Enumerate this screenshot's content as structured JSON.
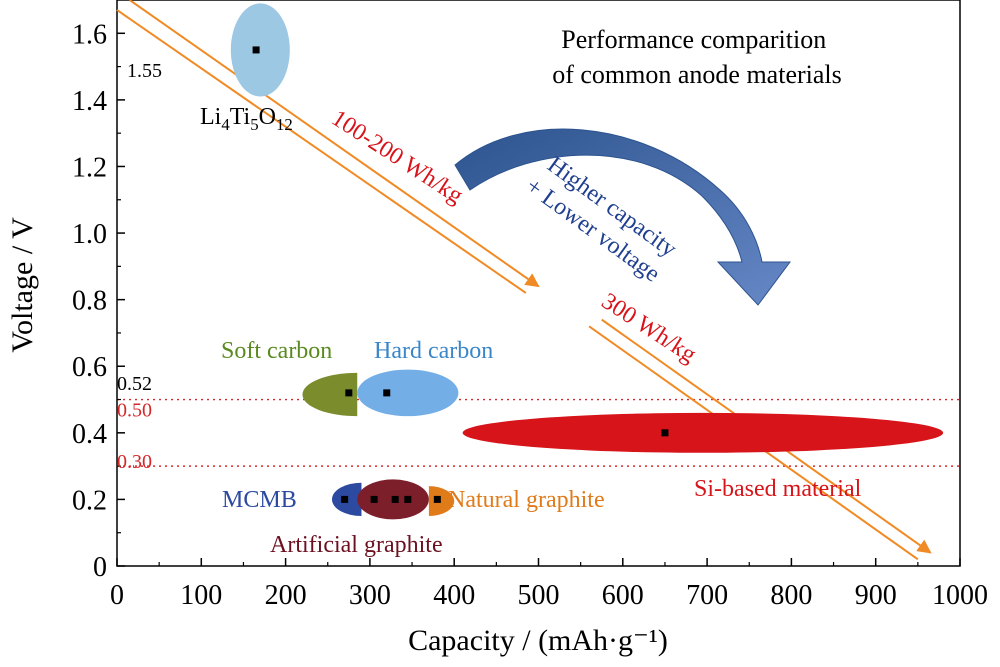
{
  "chart_data": {
    "type": "scatter",
    "title": "Performance comparition\nof common anode materials",
    "xlabel": "Capacity / (mAh·g⁻¹)",
    "ylabel": "Voltage / V",
    "xlim": [
      0,
      1000
    ],
    "ylim": [
      0,
      1.7
    ],
    "xticks": [
      0,
      100,
      200,
      300,
      400,
      500,
      600,
      700,
      800,
      900,
      1000
    ],
    "yticks": [
      0,
      0.2,
      0.4,
      0.6,
      0.8,
      1.0,
      1.2,
      1.4,
      1.6
    ],
    "xtick_labels": [
      "0",
      "100",
      "200",
      "300",
      "400",
      "500",
      "600",
      "700",
      "800",
      "900",
      "1000"
    ],
    "ytick_labels": [
      "0",
      "0.2",
      "0.4",
      "0.6",
      "0.8",
      "1.0",
      "1.2",
      "1.4",
      "1.6"
    ],
    "grid": false,
    "reference_lines": [
      {
        "y": 0.52,
        "label": "0.52",
        "label_color": "#000000",
        "line_color": "#d62728",
        "style": "dotted",
        "draw": false
      },
      {
        "y": 0.5,
        "label": "0.50",
        "label_color": "#d62728",
        "line_color": "#d62728",
        "style": "dotted",
        "draw": true
      },
      {
        "y": 0.3,
        "label": "0.30",
        "label_color": "#d62728",
        "line_color": "#d62728",
        "style": "dotted",
        "draw": true
      }
    ],
    "materials": [
      {
        "name": "Li4Ti5O12",
        "label_text": "Li",
        "sub1": "4",
        "mid": "Ti",
        "sub2": "5",
        "end": "O",
        "sub3": "12",
        "x": 165,
        "y": 1.55,
        "x_range": [
          135,
          205
        ],
        "y_range": [
          1.41,
          1.69
        ],
        "color": "#9cc8e4",
        "label_color": "#000000",
        "value_label": "1.55"
      },
      {
        "name": "Soft carbon",
        "x": 275,
        "y": 0.52,
        "x_range": [
          220,
          285
        ],
        "y_range": [
          0.45,
          0.58
        ],
        "shape": "half-left",
        "color": "#7a8c2c",
        "label_color": "#5a8a1f"
      },
      {
        "name": "Hard carbon",
        "x": 320,
        "y": 0.52,
        "x_range": [
          285,
          405
        ],
        "y_range": [
          0.45,
          0.59
        ],
        "shape": "ellipse",
        "color": "#73aee6",
        "label_color": "#3a86c8"
      },
      {
        "name": "Si-based material",
        "x": 650,
        "y": 0.4,
        "x_range": [
          410,
          980
        ],
        "y_range": [
          0.34,
          0.46
        ],
        "shape": "ellipse",
        "color": "#d7141a",
        "label_color": "#d7141a"
      },
      {
        "name": "MCMB",
        "x": 270,
        "y": 0.2,
        "x_range": [
          255,
          290
        ],
        "y_range": [
          0.15,
          0.25
        ],
        "shape": "half-left",
        "color": "#2c4aa0",
        "label_color": "#2c4aa0"
      },
      {
        "name": "Artificial graphite",
        "x": 330,
        "y": 0.2,
        "x_range": [
          285,
          370
        ],
        "y_range": [
          0.14,
          0.26
        ],
        "shape": "ellipse",
        "color": "#7c1f2b",
        "label_color": "#6b1020",
        "extra_points_x": [
          305,
          345
        ]
      },
      {
        "name": "Natural graphite",
        "x": 380,
        "y": 0.2,
        "x_range": [
          370,
          400
        ],
        "y_range": [
          0.15,
          0.24
        ],
        "shape": "half-right",
        "color": "#e07b1a",
        "label_color": "#e07b1a"
      }
    ],
    "energy_lines": [
      {
        "label": "100-200 Wh/kg",
        "label_color": "#d7141a",
        "color": "#f08a24",
        "p1": [
          15,
          1.7
        ],
        "p2": [
          500,
          0.84
        ],
        "q1": [
          0,
          1.67
        ],
        "q2": [
          485,
          0.82
        ]
      },
      {
        "label": "300 Wh/kg",
        "label_color": "#d7141a",
        "color": "#f08a24",
        "p1": [
          575,
          0.74
        ],
        "p2": [
          965,
          0.04
        ],
        "q1": [
          560,
          0.72
        ],
        "q2": [
          950,
          0.02
        ]
      }
    ],
    "annotation": {
      "text_line1": "Higher capacity",
      "text_line2": "+ Lower voltage",
      "color": "#1f3f8f",
      "arrow_color": "#3f64a6"
    }
  }
}
